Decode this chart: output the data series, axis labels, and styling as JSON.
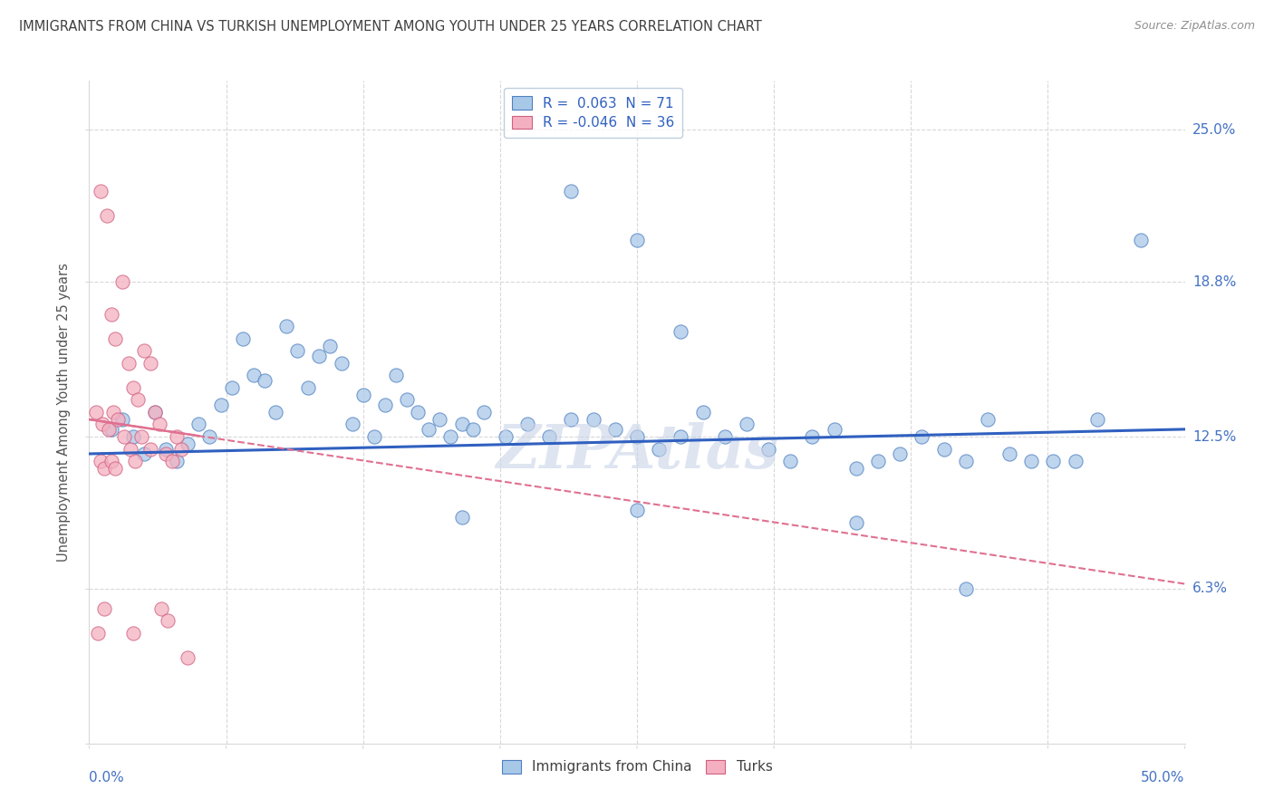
{
  "title": "IMMIGRANTS FROM CHINA VS TURKISH UNEMPLOYMENT AMONG YOUTH UNDER 25 YEARS CORRELATION CHART",
  "source": "Source: ZipAtlas.com",
  "ylabel": "Unemployment Among Youth under 25 years",
  "xmin": 0.0,
  "xmax": 50.0,
  "ymin": 0.0,
  "ymax": 27.0,
  "ytick_vals": [
    0.0,
    6.3,
    12.5,
    18.8,
    25.0
  ],
  "r_blue": 0.063,
  "n_blue": 71,
  "r_pink": -0.046,
  "n_pink": 36,
  "blue_color": "#a8c8e8",
  "blue_edge_color": "#5080c0",
  "pink_color": "#f4b0c0",
  "pink_edge_color": "#d06080",
  "blue_line_color": "#3060c0",
  "pink_line_color": "#e07090",
  "axis_label_color": "#4472c4",
  "title_color": "#404040",
  "source_color": "#909090",
  "grid_color": "#d8d8d8",
  "watermark_color": "#c8d4e8",
  "blue_scatter": [
    [
      1.0,
      12.8
    ],
    [
      1.5,
      13.2
    ],
    [
      2.0,
      12.5
    ],
    [
      2.5,
      11.8
    ],
    [
      3.0,
      13.5
    ],
    [
      3.5,
      12.0
    ],
    [
      4.0,
      11.5
    ],
    [
      4.5,
      12.2
    ],
    [
      5.0,
      13.0
    ],
    [
      5.5,
      12.5
    ],
    [
      6.0,
      13.8
    ],
    [
      6.5,
      14.5
    ],
    [
      7.0,
      16.5
    ],
    [
      7.5,
      15.0
    ],
    [
      8.0,
      14.8
    ],
    [
      8.5,
      13.5
    ],
    [
      9.0,
      17.0
    ],
    [
      9.5,
      16.0
    ],
    [
      10.0,
      14.5
    ],
    [
      10.5,
      15.8
    ],
    [
      11.0,
      16.2
    ],
    [
      11.5,
      15.5
    ],
    [
      12.0,
      13.0
    ],
    [
      12.5,
      14.2
    ],
    [
      13.0,
      12.5
    ],
    [
      13.5,
      13.8
    ],
    [
      14.0,
      15.0
    ],
    [
      14.5,
      14.0
    ],
    [
      15.0,
      13.5
    ],
    [
      15.5,
      12.8
    ],
    [
      16.0,
      13.2
    ],
    [
      16.5,
      12.5
    ],
    [
      17.0,
      13.0
    ],
    [
      17.5,
      12.8
    ],
    [
      18.0,
      13.5
    ],
    [
      19.0,
      12.5
    ],
    [
      20.0,
      13.0
    ],
    [
      21.0,
      12.5
    ],
    [
      22.0,
      13.2
    ],
    [
      23.0,
      13.2
    ],
    [
      24.0,
      12.8
    ],
    [
      25.0,
      12.5
    ],
    [
      26.0,
      12.0
    ],
    [
      27.0,
      12.5
    ],
    [
      28.0,
      13.5
    ],
    [
      29.0,
      12.5
    ],
    [
      30.0,
      13.0
    ],
    [
      31.0,
      12.0
    ],
    [
      32.0,
      11.5
    ],
    [
      33.0,
      12.5
    ],
    [
      34.0,
      12.8
    ],
    [
      35.0,
      11.2
    ],
    [
      36.0,
      11.5
    ],
    [
      37.0,
      11.8
    ],
    [
      38.0,
      12.5
    ],
    [
      39.0,
      12.0
    ],
    [
      40.0,
      11.5
    ],
    [
      41.0,
      13.2
    ],
    [
      42.0,
      11.8
    ],
    [
      43.0,
      11.5
    ],
    [
      44.0,
      11.5
    ],
    [
      45.0,
      11.5
    ],
    [
      46.0,
      13.2
    ],
    [
      48.0,
      20.5
    ],
    [
      25.0,
      20.5
    ],
    [
      22.0,
      22.5
    ],
    [
      27.0,
      16.8
    ],
    [
      17.0,
      9.2
    ],
    [
      25.0,
      9.5
    ],
    [
      35.0,
      9.0
    ],
    [
      40.0,
      6.3
    ]
  ],
  "pink_scatter": [
    [
      0.5,
      22.5
    ],
    [
      0.8,
      21.5
    ],
    [
      1.0,
      17.5
    ],
    [
      1.2,
      16.5
    ],
    [
      1.5,
      18.8
    ],
    [
      1.8,
      15.5
    ],
    [
      2.0,
      14.5
    ],
    [
      2.2,
      14.0
    ],
    [
      2.5,
      16.0
    ],
    [
      2.8,
      15.5
    ],
    [
      0.3,
      13.5
    ],
    [
      0.6,
      13.0
    ],
    [
      0.9,
      12.8
    ],
    [
      1.1,
      13.5
    ],
    [
      1.3,
      13.2
    ],
    [
      1.6,
      12.5
    ],
    [
      1.9,
      12.0
    ],
    [
      2.1,
      11.5
    ],
    [
      2.4,
      12.5
    ],
    [
      2.8,
      12.0
    ],
    [
      3.0,
      13.5
    ],
    [
      3.2,
      13.0
    ],
    [
      3.5,
      11.8
    ],
    [
      3.8,
      11.5
    ],
    [
      4.0,
      12.5
    ],
    [
      4.2,
      12.0
    ],
    [
      0.5,
      11.5
    ],
    [
      0.7,
      11.2
    ],
    [
      1.0,
      11.5
    ],
    [
      1.2,
      11.2
    ],
    [
      3.3,
      5.5
    ],
    [
      3.6,
      5.0
    ],
    [
      0.7,
      5.5
    ],
    [
      0.4,
      4.5
    ],
    [
      4.5,
      3.5
    ],
    [
      2.0,
      4.5
    ]
  ]
}
